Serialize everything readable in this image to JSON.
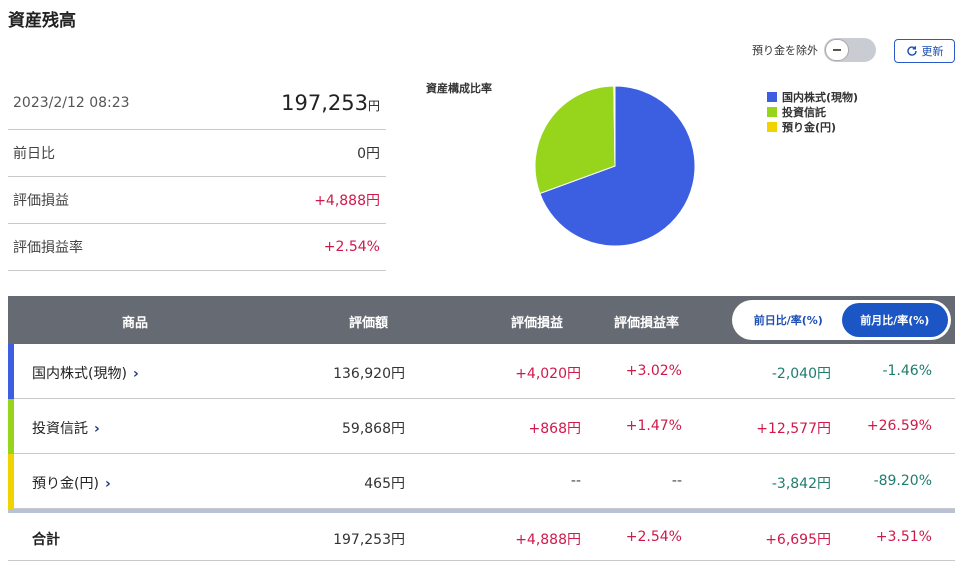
{
  "page_title": "資産残高",
  "toggle": {
    "label": "預り金を除外"
  },
  "refresh_label": "更新",
  "summary": {
    "datetime": "2023/2/12 08:23",
    "total_value": "197,253",
    "total_unit": "円",
    "rows": [
      {
        "label": "前日比",
        "value": "0円"
      },
      {
        "label": "評価損益",
        "value": "+4,888円"
      },
      {
        "label": "評価損益率",
        "value": "+2.54%"
      }
    ]
  },
  "pie": {
    "title": "資産構成比率",
    "legend": [
      {
        "label": "国内株式(現物)",
        "color": "#3b5fe0"
      },
      {
        "label": "投資信託",
        "color": "#97d41c"
      },
      {
        "label": "預り金(円)",
        "color": "#f1d300"
      }
    ]
  },
  "chart_data": {
    "type": "pie",
    "title": "資産構成比率",
    "labels": [
      "国内株式(現物)",
      "投資信託",
      "預り金(円)"
    ],
    "values": [
      136920,
      59868,
      465
    ],
    "colors": [
      "#3b5fe0",
      "#97d41c",
      "#f1d300"
    ],
    "legend": "right"
  },
  "table": {
    "headers": {
      "product": "商品",
      "value": "評価額",
      "pl": "評価損益",
      "pl_rate": "評価損益率"
    },
    "segment": {
      "daily": "前日比/率(%)",
      "monthly": "前月比/率(%)"
    },
    "rows": [
      {
        "name": "国内株式(現物)",
        "color": "#3b5fe0",
        "value": "136,920円",
        "pl": "+4,020円",
        "pl_rate": "+3.02%",
        "change": "-2,040円",
        "change_rate": "-1.46%"
      },
      {
        "name": "投資信託",
        "color": "#97d41c",
        "value": "59,868円",
        "pl": "+868円",
        "pl_rate": "+1.47%",
        "change": "+12,577円",
        "change_rate": "+26.59%"
      },
      {
        "name": "預り金(円)",
        "color": "#f1d300",
        "value": "465円",
        "pl": "--",
        "pl_rate": "--",
        "change": "-3,842円",
        "change_rate": "-89.20%"
      }
    ],
    "total": {
      "label": "合計",
      "value": "197,253円",
      "pl": "+4,888円",
      "pl_rate": "+2.54%",
      "change": "+6,695円",
      "change_rate": "+3.51%"
    }
  }
}
